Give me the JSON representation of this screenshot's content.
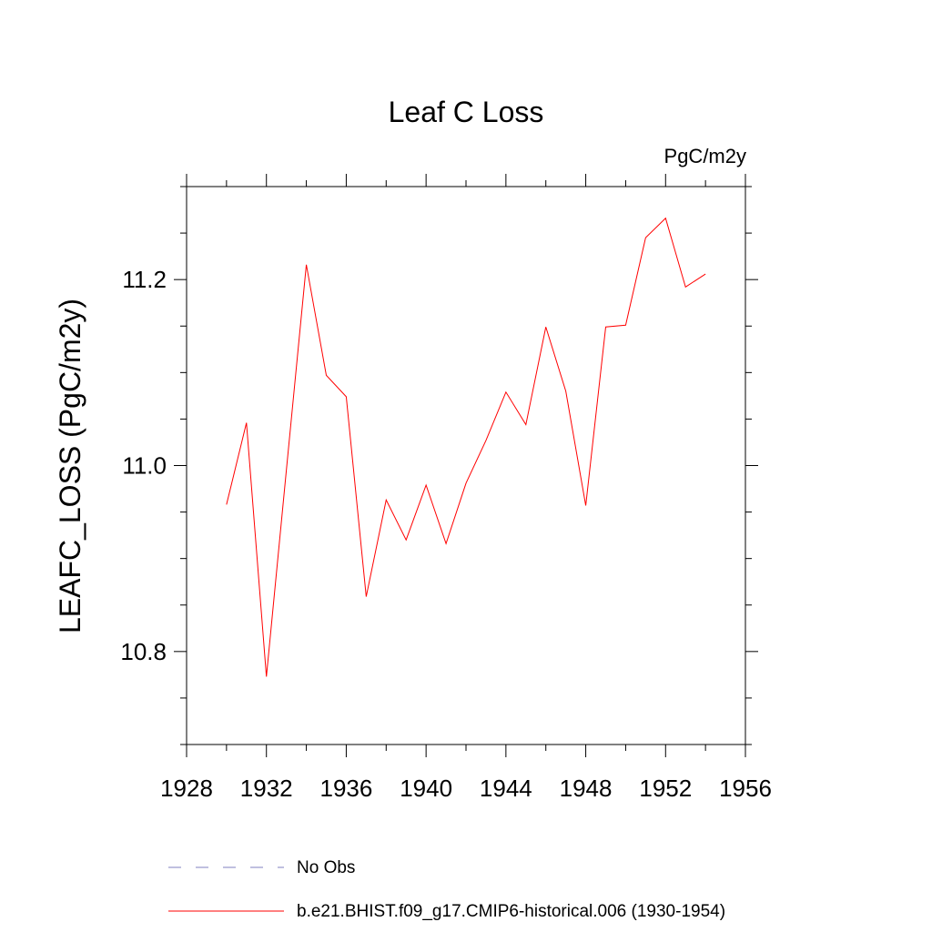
{
  "chart_data": {
    "type": "line",
    "title": "Leaf C Loss",
    "units_label": "PgC/m2y",
    "ylabel": "LEAFC_LOSS  (PgC/m2y)",
    "xlabel": "",
    "xlim": [
      1928,
      1956
    ],
    "ylim": [
      10.7,
      11.3
    ],
    "x_ticks": [
      1928,
      1932,
      1936,
      1940,
      1944,
      1948,
      1952,
      1956
    ],
    "y_ticks": [
      10.8,
      11.0,
      11.2
    ],
    "y_tick_labels": [
      "10.8",
      "11.0",
      "11.2"
    ],
    "x_minor_step": 2,
    "y_minor_step": 0.05,
    "grid": false,
    "legend_position": "bottom-left below plot",
    "series": [
      {
        "name": "b.e21.BHIST.f09_g17.CMIP6-historical.006 (1930-1954)",
        "color": "#ff0000",
        "style": "solid",
        "x": [
          1930,
          1931,
          1932,
          1933,
          1934,
          1935,
          1936,
          1937,
          1938,
          1939,
          1940,
          1941,
          1942,
          1943,
          1944,
          1945,
          1946,
          1947,
          1948,
          1949,
          1950,
          1951,
          1952,
          1953,
          1954
        ],
        "y": [
          10.958,
          11.046,
          10.773,
          10.995,
          11.216,
          11.097,
          11.074,
          10.859,
          10.963,
          10.92,
          10.979,
          10.916,
          10.981,
          11.027,
          11.079,
          11.044,
          11.149,
          11.08,
          10.957,
          11.149,
          11.151,
          11.245,
          11.266,
          11.192,
          11.206
        ]
      }
    ],
    "legend": [
      {
        "label": "No Obs",
        "color": "#8080c0",
        "style": "dashed"
      },
      {
        "label": "b.e21.BHIST.f09_g17.CMIP6-historical.006 (1930-1954)",
        "color": "#ff0000",
        "style": "solid"
      }
    ]
  }
}
